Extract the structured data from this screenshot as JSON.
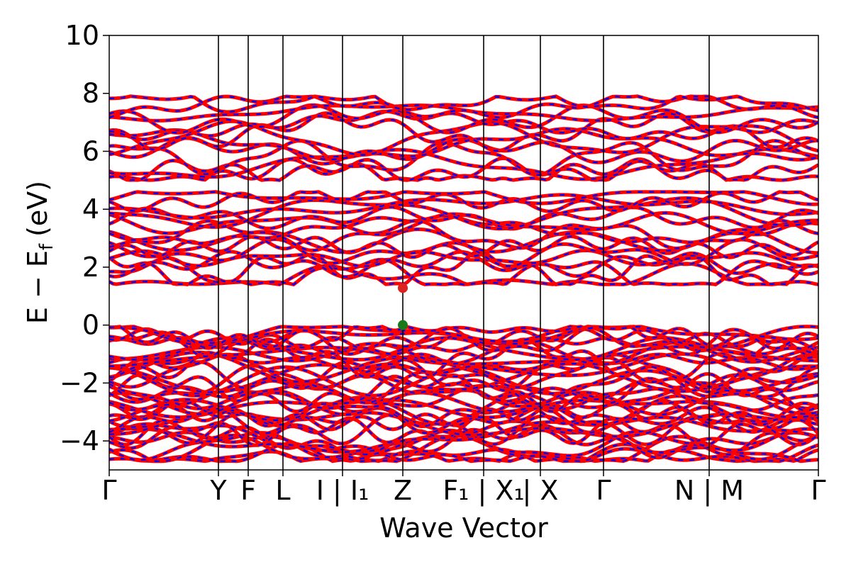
{
  "chart_data": {
    "type": "line",
    "subtype": "electronic band structure (spin-up dashed blue over spin-down red)",
    "xlabel": "Wave Vector",
    "ylabel_main": "E − E",
    "ylabel_sub": "f",
    "ylabel_unit": "(eV)",
    "ylim": [
      -5,
      10
    ],
    "yticks": [
      10,
      8,
      6,
      4,
      2,
      0,
      -2,
      -4
    ],
    "ytick_labels": [
      "10",
      "8",
      "6",
      "4",
      "2",
      "0",
      "−2",
      "−4"
    ],
    "xlim": [
      0,
      1
    ],
    "kpath": [
      {
        "label": "Γ",
        "x": 0.0
      },
      {
        "label": "Y",
        "x": 0.154
      },
      {
        "label": "F",
        "x": 0.196
      },
      {
        "label": "L",
        "x": 0.245
      },
      {
        "label": "I | I₁",
        "x": 0.329
      },
      {
        "label": "Z",
        "x": 0.414
      },
      {
        "label": "F₁ | X₁",
        "x": 0.528
      },
      {
        "label": "| X",
        "x": 0.608
      },
      {
        "label": "Γ",
        "x": 0.697
      },
      {
        "label": "N | M",
        "x": 0.846
      },
      {
        "label": "Γ",
        "x": 1.0
      }
    ],
    "series": [
      {
        "color": "#ff0000",
        "style": "solid"
      },
      {
        "color": "#0000ff",
        "style": "dashed"
      }
    ],
    "markers": [
      {
        "label": "CBM",
        "x": 0.414,
        "y": 1.28,
        "color": "#dd2222"
      },
      {
        "label": "VBM",
        "x": 0.414,
        "y": 0.0,
        "color": "#1a7a1a"
      }
    ],
    "band_groups": [
      {
        "base_start": 5.0,
        "base_end": 7.9,
        "count": 13
      },
      {
        "base_start": 1.4,
        "base_end": 4.6,
        "count": 16
      },
      {
        "base_start": -4.7,
        "base_end": -0.05,
        "count": 38
      }
    ]
  }
}
